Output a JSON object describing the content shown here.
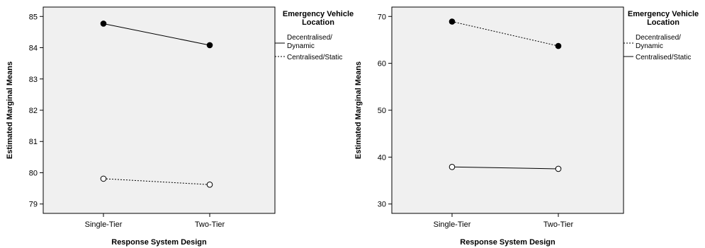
{
  "chart_data": [
    {
      "type": "line",
      "xlabel": "Response System Design",
      "ylabel": "Estimated Marginal Means",
      "categories": [
        "Single-Tier",
        "Two-Tier"
      ],
      "ylim": [
        78.7,
        85.3
      ],
      "yticks": [
        "79",
        "80",
        "81",
        "82",
        "83",
        "84",
        "85"
      ],
      "legend": {
        "title": [
          "Emergency Vehicle",
          "Location"
        ],
        "placement": "right",
        "items": [
          {
            "label": [
              "Decentralised/",
              "Dynamic"
            ],
            "dash": "solid"
          },
          {
            "label": [
              "Centralised/Static"
            ],
            "dash": "dotted"
          }
        ]
      },
      "series": [
        {
          "name": "Decentralised/Dynamic",
          "values": [
            84.77,
            84.08
          ],
          "marker": "filled",
          "dash": "solid"
        },
        {
          "name": "Centralised/Static",
          "values": [
            79.81,
            79.62
          ],
          "marker": "open",
          "dash": "dotted"
        }
      ]
    },
    {
      "type": "line",
      "xlabel": "Response System Design",
      "ylabel": "Estimated Marginal Means",
      "categories": [
        "Single-Tier",
        "Two-Tier"
      ],
      "ylim": [
        28.0,
        72.0
      ],
      "yticks": [
        "30",
        "40",
        "50",
        "60",
        "70"
      ],
      "legend": {
        "title": [
          "Emergency Vehicle",
          "Location"
        ],
        "placement": "right",
        "items": [
          {
            "label": [
              "Decentralised/",
              "Dynamic"
            ],
            "dash": "dotted"
          },
          {
            "label": [
              "Centralised/Static"
            ],
            "dash": "solid"
          }
        ]
      },
      "series": [
        {
          "name": "Decentralised/Dynamic",
          "values": [
            68.9,
            63.7
          ],
          "marker": "filled",
          "dash": "dotted"
        },
        {
          "name": "Centralised/Static",
          "values": [
            37.9,
            37.5
          ],
          "marker": "open",
          "dash": "solid"
        }
      ]
    }
  ]
}
